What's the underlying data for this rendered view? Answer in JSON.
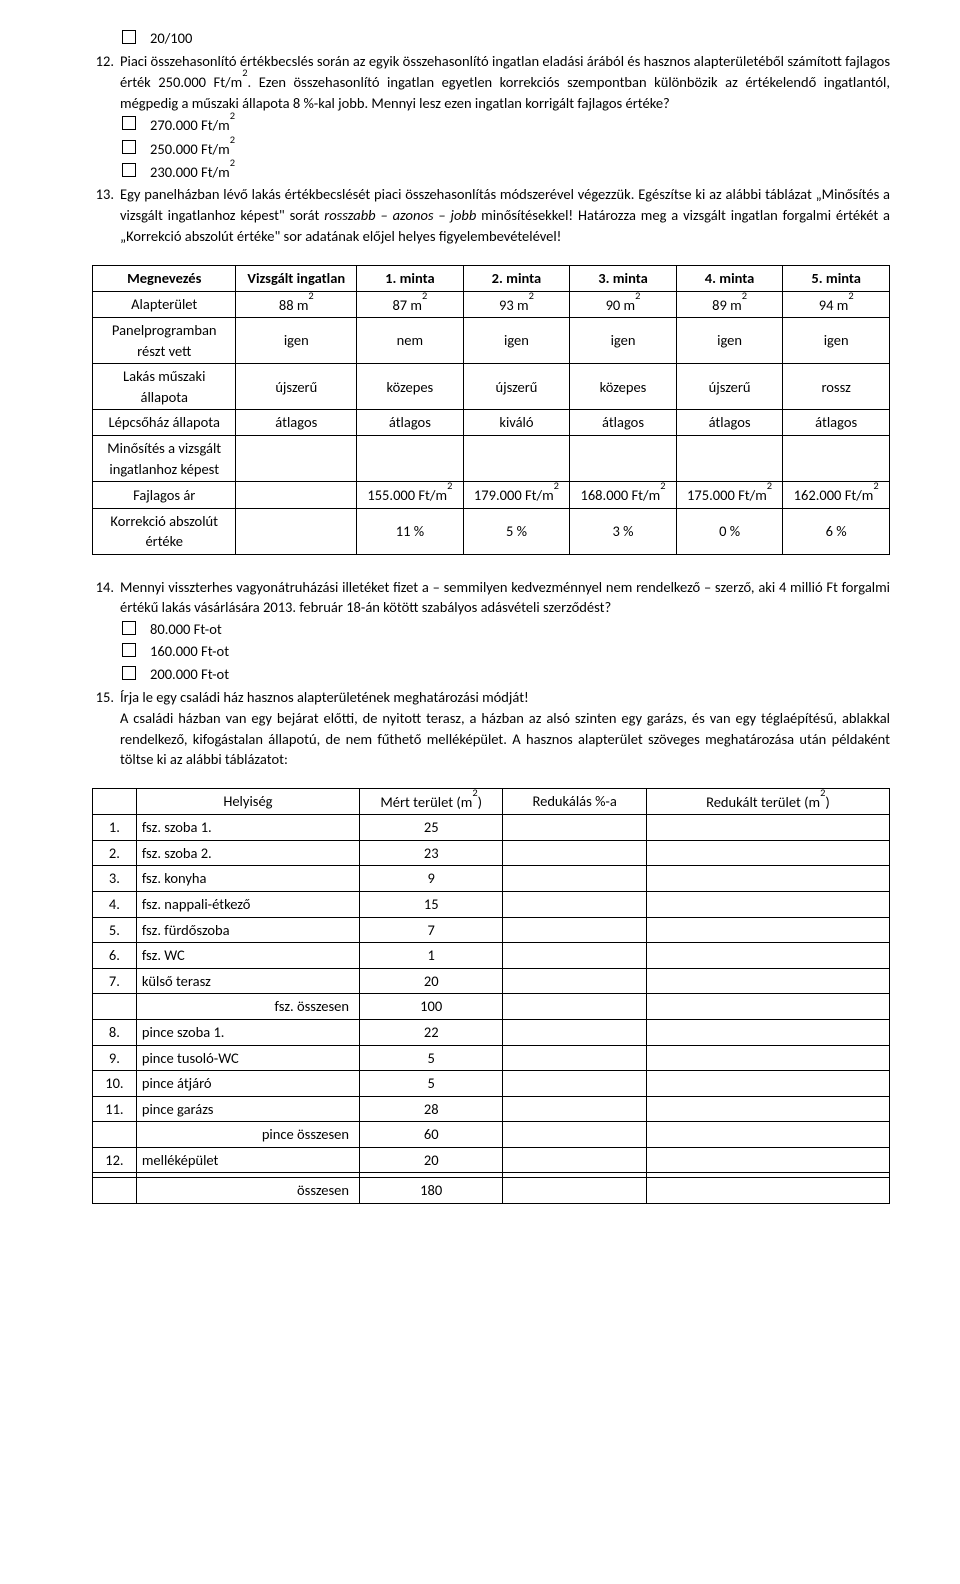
{
  "opt_top": "20/100",
  "q12_num": "12.",
  "q12_text1": "Piaci összehasonlító értékbecslés során az egyik összehasonlító ingatlan eladási árából és hasznos alapterületéből számított fajlagos érték 250.000 Ft/m",
  "q12_text2": ". Ezen összehasonlító ingatlan egyetlen korrekciós szempontban különbözik az értékelendő ingatlantól, mégpedig a műszaki állapota 8 %-kal jobb. Mennyi lesz ezen ingatlan korrigált fajlagos értéke?",
  "q12_opts": [
    "270.000 Ft/m",
    "250.000 Ft/m",
    "230.000 Ft/m"
  ],
  "q13_num": "13.",
  "q13_text": "Egy panelházban lévő lakás értékbecslését piaci összehasonlítás módszerével végezzük. Egészítse ki az alábbi táblázat „Minősítés a vizsgált ingatlanhoz képest\" sorát ",
  "q13_italic": "rosszabb – azonos – jobb",
  "q13_text2": " minősítésekkel! Határozza meg a vizsgált ingatlan forgalmi értékét a „Korrekció abszolút értéke\" sor adatának előjel helyes figyelembevételével!",
  "t1": {
    "h": [
      "Megnevezés",
      "Vizsgált ingatlan",
      "1. minta",
      "2. minta",
      "3. minta",
      "4. minta",
      "5. minta"
    ],
    "r1": [
      "Alapterület",
      "88 m",
      "87 m",
      "93 m",
      "90 m",
      "89 m",
      "94 m"
    ],
    "r2": [
      "Panelprogramban részt vett",
      "igen",
      "nem",
      "igen",
      "igen",
      "igen",
      "igen"
    ],
    "r3": [
      "Lakás műszaki állapota",
      "újszerű",
      "közepes",
      "újszerű",
      "közepes",
      "újszerű",
      "rossz"
    ],
    "r4": [
      "Lépcsőház állapota",
      "átlagos",
      "átlagos",
      "kiváló",
      "átlagos",
      "átlagos",
      "átlagos"
    ],
    "r5": [
      "Minősítés a vizsgált ingatlanhoz képest",
      "",
      "",
      "",
      "",
      "",
      ""
    ],
    "r6": [
      "Fajlagos ár",
      "",
      "155.000 Ft/m",
      "179.000 Ft/m",
      "168.000 Ft/m",
      "175.000 Ft/m",
      "162.000 Ft/m"
    ],
    "r7": [
      "Korrekció abszolút értéke",
      "",
      "11 %",
      "5 %",
      "3 %",
      "0 %",
      "6 %"
    ]
  },
  "q14_num": "14.",
  "q14_text": "Mennyi visszterhes vagyonátruházási illetéket fizet a – semmilyen kedvezménnyel nem rendelkező – szerző, aki 4 millió Ft forgalmi értékű lakás vásárlására 2013. február 18-án kötött szabályos adásvételi szerződést?",
  "q14_opts": [
    "80.000 Ft-ot",
    "160.000 Ft-ot",
    "200.000 Ft-ot"
  ],
  "q15_num": "15.",
  "q15_text": "Írja le egy családi ház hasznos alapterületének meghatározási módját!",
  "q15_p": "A családi házban van egy bejárat előtti, de nyitott terasz, a házban az alsó szinten egy garázs, és van egy téglaépítésű, ablakkal rendelkező, kifogástalan állapotú, de nem fűthető melléképület. A hasznos alapterület szöveges meghatározása után példaként töltse ki az alábbi táblázatot:",
  "t2": {
    "h": [
      "",
      "Helyiség",
      "Mért terület (m",
      "Redukálás %-a",
      "Redukált terület (m"
    ],
    "rows": [
      [
        "1.",
        "fsz. szoba 1.",
        "25",
        "",
        ""
      ],
      [
        "2.",
        "fsz. szoba 2.",
        "23",
        "",
        ""
      ],
      [
        "3.",
        "fsz. konyha",
        "9",
        "",
        ""
      ],
      [
        "4.",
        "fsz. nappali-étkező",
        "15",
        "",
        ""
      ],
      [
        "5.",
        "fsz. fürdőszoba",
        "7",
        "",
        ""
      ],
      [
        "6.",
        "fsz. WC",
        "1",
        "",
        ""
      ],
      [
        "7.",
        "külső terasz",
        "20",
        "",
        ""
      ]
    ],
    "sub1": [
      "fsz. összesen",
      "100"
    ],
    "rows2": [
      [
        "8.",
        "pince szoba 1.",
        "22",
        "",
        ""
      ],
      [
        "9.",
        "pince tusoló-WC",
        "5",
        "",
        ""
      ],
      [
        "10.",
        "pince átjáró",
        "5",
        "",
        ""
      ],
      [
        "11.",
        "pince garázs",
        "28",
        "",
        ""
      ]
    ],
    "sub2": [
      "pince összesen",
      "60"
    ],
    "rows3": [
      [
        "12.",
        "melléképület",
        "20",
        "",
        ""
      ]
    ],
    "empty": [
      "",
      "",
      "",
      "",
      ""
    ],
    "total": [
      "összesen",
      "180"
    ]
  },
  "sq": "2",
  "paren": ")"
}
